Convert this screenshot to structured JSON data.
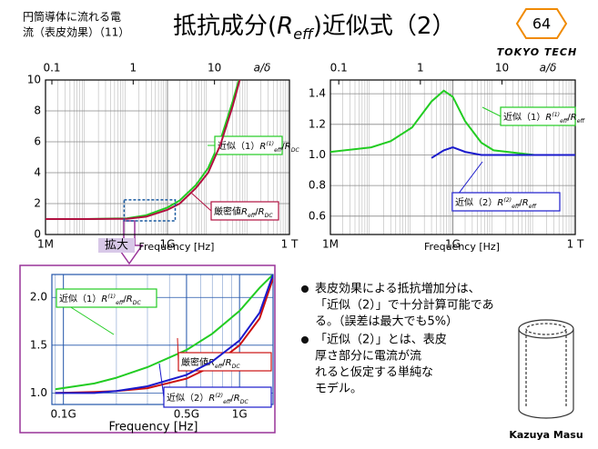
{
  "header": {
    "subtitle_lines": [
      "円筒導体に流れる電",
      "流（表皮効果）（11）"
    ],
    "title_parts": [
      {
        "t": "抵抗成分("
      },
      {
        "t": "R",
        "pos": "math"
      },
      {
        "t": "eff",
        "pos": "sub"
      },
      {
        "t": ")近似式（2）"
      }
    ],
    "page": "64",
    "logo": "TOKYO TECH"
  },
  "zoom_label": "拡大",
  "bullets": [
    [
      "表皮効果による抵抗増加分は、",
      "「近似（2）」で十分計算可能であ",
      "る。（誤差は最大でも5%）"
    ],
    [
      "「近似（2）」とは、表皮",
      "厚さ部分に電流が流",
      "れると仮定する単純な",
      "モデル。"
    ]
  ],
  "author": "Kazuya Masu",
  "chart_data": [
    {
      "type": "line",
      "x_scale": "log",
      "xlim": [
        1000000,
        1000000000000
      ],
      "xticks": [
        {
          "value": 1000000,
          "label": "1M"
        },
        {
          "value": 1000000000,
          "label": "1G"
        },
        {
          "value": 1000000000000,
          "label": "1 T"
        }
      ],
      "xlabel": "Frequency [Hz]",
      "x2lim": [
        0.0835,
        83.5
      ],
      "x2ticks": [
        0.1,
        1,
        10
      ],
      "x2label": "a/δ",
      "ylim": [
        0,
        10
      ],
      "yticks": [
        0,
        2,
        4,
        6,
        8,
        10
      ],
      "grid": true,
      "grid_color": "#888888",
      "x": [
        1000000,
        10000000,
        100000000,
        300000000,
        1000000000,
        2000000000,
        5000000000,
        10000000000,
        20000000000,
        40000000000,
        60000000000
      ],
      "series": [
        {
          "name": "近似（1）",
          "color": "#22cc22",
          "values": [
            1,
            1,
            1.05,
            1.25,
            1.75,
            2.2,
            3.2,
            4.3,
            6.1,
            8.6,
            10.2
          ],
          "formula": [
            {
              "t": "R",
              "pos": "math"
            },
            {
              "t": "(1)",
              "pos": "sup"
            },
            {
              "t": "eff",
              "pos": "sub"
            },
            {
              "t": "/"
            },
            {
              "t": "R",
              "pos": "math"
            },
            {
              "t": "DC",
              "pos": "sub"
            }
          ]
        },
        {
          "name": "厳密値",
          "color": "#b01040",
          "values": [
            1,
            1,
            1.02,
            1.15,
            1.6,
            2.0,
            3.0,
            4.0,
            5.8,
            8.3,
            10
          ],
          "formula": [
            {
              "t": "R",
              "pos": "math"
            },
            {
              "t": "eff",
              "pos": "sub"
            },
            {
              "t": "/"
            },
            {
              "t": "R",
              "pos": "math"
            },
            {
              "t": "DC",
              "pos": "sub"
            }
          ]
        }
      ]
    },
    {
      "type": "line",
      "x_scale": "log",
      "xlim": [
        1000000,
        1000000000000
      ],
      "xticks": [
        {
          "value": 1000000,
          "label": "1M"
        },
        {
          "value": 1000000000,
          "label": "1G"
        },
        {
          "value": 1000000000000,
          "label": "1 T"
        }
      ],
      "xlabel": "Frequency [Hz]",
      "x2lim": [
        0.079,
        79
      ],
      "x2ticks": [
        0.1,
        1,
        10
      ],
      "x2label": "a/δ",
      "ylim": [
        0.48,
        1.49
      ],
      "yticks": [
        0.6,
        0.8,
        {
          "value": 1,
          "label": "1.0"
        },
        1.2,
        1.4
      ],
      "grid": true,
      "grid_color": "#888888",
      "x": [
        1000000,
        10000000,
        30000000,
        100000000,
        300000000,
        600000000,
        1000000000,
        2000000000,
        5000000000,
        10000000000,
        100000000000,
        1000000000000
      ],
      "series": [
        {
          "name": "近似（1）",
          "color": "#22cc22",
          "values": [
            1.02,
            1.05,
            1.09,
            1.18,
            1.35,
            1.42,
            1.38,
            1.22,
            1.08,
            1.03,
            1.0,
            1.0
          ],
          "formula": [
            {
              "t": "R",
              "pos": "math"
            },
            {
              "t": "(1)",
              "pos": "sup"
            },
            {
              "t": "eff",
              "pos": "sub"
            },
            {
              "t": "/"
            },
            {
              "t": "R",
              "pos": "math"
            },
            {
              "t": "eff",
              "pos": "sub"
            }
          ]
        },
        {
          "name": "近似（2）",
          "color": "#1a1acc",
          "values": [
            null,
            null,
            null,
            null,
            0.98,
            1.03,
            1.05,
            1.02,
            1.0,
            1.0,
            1.0,
            1.0
          ],
          "formula": [
            {
              "t": "R",
              "pos": "math"
            },
            {
              "t": "(2)",
              "pos": "sup"
            },
            {
              "t": "eff",
              "pos": "sub"
            },
            {
              "t": "/"
            },
            {
              "t": "R",
              "pos": "math"
            },
            {
              "t": "eff",
              "pos": "sub"
            }
          ]
        }
      ]
    },
    {
      "type": "line",
      "x_scale": "log",
      "xlim": [
        86000000,
        1550000000
      ],
      "xticks": [
        {
          "value": 100000000,
          "label": "0.1G"
        },
        {
          "value": 500000000,
          "label": "0.5G"
        },
        {
          "value": 1000000000,
          "label": "1G"
        }
      ],
      "xlabel": "Frequency [Hz]",
      "ylim": [
        0.88,
        2.24
      ],
      "yticks": [
        {
          "value": 1,
          "label": "1.0"
        },
        1.5,
        {
          "value": 2,
          "label": "2.0"
        }
      ],
      "grid": true,
      "grid_color": "#2255aa",
      "x": [
        90000000,
        150000000,
        200000000,
        300000000,
        500000000,
        700000000,
        1000000000,
        1300000000,
        1550000000
      ],
      "series": [
        {
          "name": "近似（1）",
          "color": "#22cc22",
          "values": [
            1.04,
            1.1,
            1.16,
            1.27,
            1.45,
            1.62,
            1.86,
            2.1,
            2.24
          ],
          "formula": [
            {
              "t": "R",
              "pos": "math"
            },
            {
              "t": "(1)",
              "pos": "sup"
            },
            {
              "t": "eff",
              "pos": "sub"
            },
            {
              "t": "/"
            },
            {
              "t": "R",
              "pos": "math"
            },
            {
              "t": "DC",
              "pos": "sub"
            }
          ]
        },
        {
          "name": "厳密値",
          "color": "#cc1111",
          "values": [
            1.0,
            1.01,
            1.02,
            1.05,
            1.15,
            1.28,
            1.5,
            1.78,
            2.2
          ],
          "formula": [
            {
              "t": "R",
              "pos": "math"
            },
            {
              "t": "eff",
              "pos": "sub"
            },
            {
              "t": "/"
            },
            {
              "t": "R",
              "pos": "math"
            },
            {
              "t": "DC",
              "pos": "sub"
            }
          ]
        },
        {
          "name": "近似（2）",
          "color": "#1a1acc",
          "values": [
            1.0,
            1.0,
            1.02,
            1.07,
            1.19,
            1.33,
            1.55,
            1.84,
            2.24
          ],
          "formula": [
            {
              "t": "R",
              "pos": "math"
            },
            {
              "t": "(2)",
              "pos": "sup"
            },
            {
              "t": "eff",
              "pos": "sub"
            },
            {
              "t": "/"
            },
            {
              "t": "R",
              "pos": "math"
            },
            {
              "t": "DC",
              "pos": "sub"
            }
          ]
        }
      ]
    }
  ]
}
